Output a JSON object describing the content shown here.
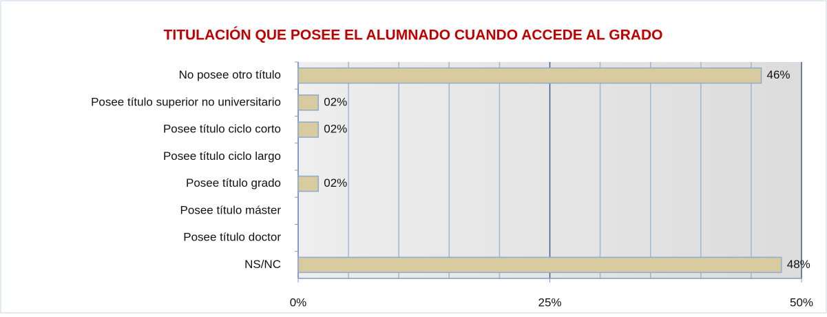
{
  "chart_data": {
    "type": "hbar",
    "title": "TITULACIÓN QUE POSEE EL ALUMNADO CUANDO ACCEDE AL GRADO",
    "categories": [
      "No posee otro título",
      "Posee título superior no universitario",
      "Posee título ciclo corto",
      "Posee título ciclo largo",
      "Posee título grado",
      "Posee título máster",
      "Posee título doctor",
      "NS/NC"
    ],
    "values": [
      46,
      2,
      2,
      0,
      2,
      0,
      0,
      48
    ],
    "value_labels": [
      "46%",
      "02%",
      "02%",
      null,
      "02%",
      null,
      null,
      "48%"
    ],
    "color": "#d8cba0",
    "xlim": [
      0,
      50
    ],
    "xticks": [
      {
        "value": 0,
        "label": "0%"
      },
      {
        "value": 25,
        "label": "25%"
      },
      {
        "value": 50,
        "label": "50%"
      }
    ],
    "minor_xticks": [
      5,
      10,
      15,
      20,
      30,
      35,
      40,
      45
    ],
    "grid": true
  }
}
